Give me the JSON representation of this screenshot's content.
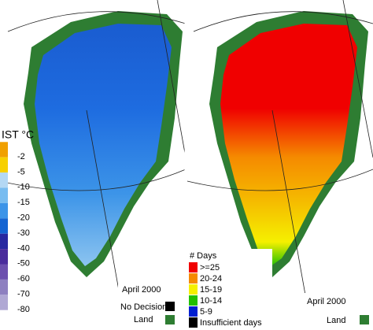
{
  "left": {
    "legend": {
      "title": "IST °C",
      "items": [
        {
          "label": "-2",
          "color": "#f0a000"
        },
        {
          "label": "-5",
          "color": "#f7d000"
        },
        {
          "label": "-10",
          "color": "#b4d8f4"
        },
        {
          "label": "-15",
          "color": "#78bcf0"
        },
        {
          "label": "-20",
          "color": "#3c94e8"
        },
        {
          "label": "-30",
          "color": "#1464d2"
        },
        {
          "label": "-40",
          "color": "#2828a0"
        },
        {
          "label": "-50",
          "color": "#4a2c9c"
        },
        {
          "label": "-60",
          "color": "#6c50ae"
        },
        {
          "label": "-70",
          "color": "#8e80c0"
        },
        {
          "label": "-80",
          "color": "#b0a8d4"
        }
      ]
    },
    "date": "April 2000",
    "no_decision": "No Decision",
    "land": "Land"
  },
  "right": {
    "legend": {
      "title": "# Days",
      "items": [
        {
          "label": ">=25",
          "color": "#f00000"
        },
        {
          "label": "20-24",
          "color": "#f58a00"
        },
        {
          "label": "15-19",
          "color": "#f5f000"
        },
        {
          "label": "10-14",
          "color": "#22c000"
        },
        {
          "label": "5-9",
          "color": "#0020d0"
        },
        {
          "label": "Insufficient days",
          "color": "#000000"
        }
      ]
    },
    "date": "April 2000",
    "land": "Land"
  },
  "colors": {
    "land": "#2e7d32",
    "no_decision": "#000000"
  }
}
